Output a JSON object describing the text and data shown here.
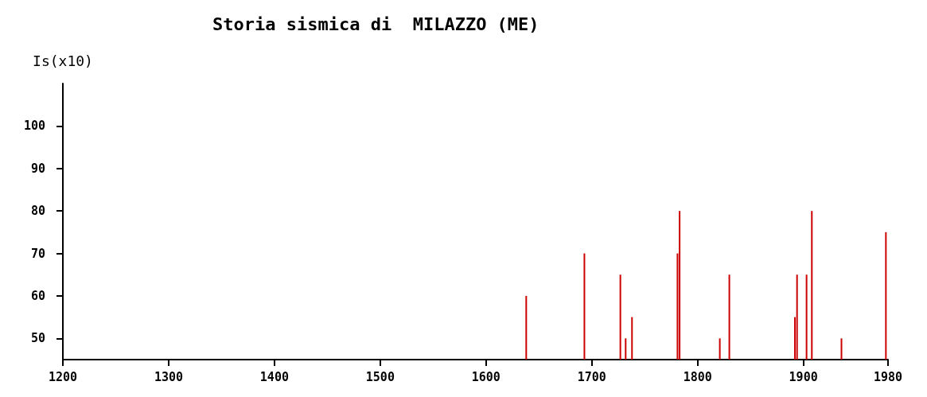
{
  "chart_data": {
    "type": "bar",
    "title": "Storia sismica di  MILAZZO (ME)",
    "ylabel": "Is(x10)",
    "x": [
      1638,
      1693,
      1727,
      1732,
      1738,
      1781,
      1783,
      1821,
      1830,
      1892,
      1894,
      1903,
      1908,
      1936,
      1978
    ],
    "values": [
      60,
      70,
      65,
      50,
      55,
      70,
      80,
      50,
      65,
      55,
      65,
      65,
      80,
      50,
      75
    ],
    "color": "#cc0000",
    "xlim": [
      1200,
      1980
    ],
    "xticks": [
      1200,
      1300,
      1400,
      1500,
      1600,
      1700,
      1800,
      1900,
      1980
    ],
    "ylim": [
      45,
      110
    ],
    "yticks": [
      50,
      60,
      70,
      80,
      90,
      100
    ],
    "grid": false
  }
}
